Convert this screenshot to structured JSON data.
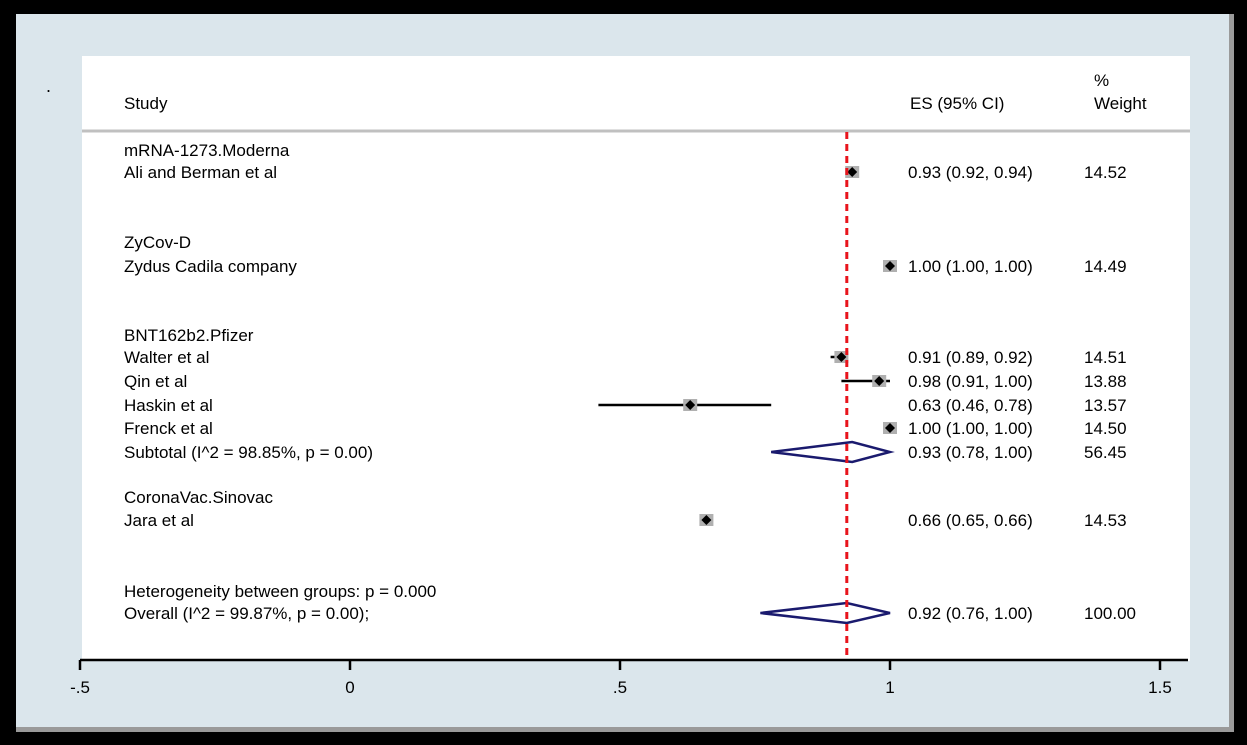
{
  "chart_data": {
    "type": "forest",
    "header": {
      "study": "Study",
      "es": "ES (95% CI)",
      "weight_line1": "%",
      "weight_line2": "Weight"
    },
    "rows": [
      {
        "kind": "group",
        "label": "mRNA-1273.Moderna"
      },
      {
        "kind": "study",
        "label": "Ali and Berman et al",
        "es": 0.93,
        "lo": 0.92,
        "hi": 0.94,
        "es_text": "0.93 (0.92, 0.94)",
        "weight": "14.52"
      },
      {
        "kind": "group",
        "label": "ZyCov-D"
      },
      {
        "kind": "study",
        "label": "Zydus Cadila company",
        "es": 1.0,
        "lo": 1.0,
        "hi": 1.0,
        "es_text": "1.00 (1.00, 1.00)",
        "weight": "14.49"
      },
      {
        "kind": "group",
        "label": "BNT162b2.Pfizer"
      },
      {
        "kind": "study",
        "label": "Walter et al",
        "es": 0.91,
        "lo": 0.89,
        "hi": 0.92,
        "es_text": "0.91 (0.89, 0.92)",
        "weight": "14.51"
      },
      {
        "kind": "study",
        "label": "Qin et al",
        "es": 0.98,
        "lo": 0.91,
        "hi": 1.0,
        "es_text": "0.98 (0.91, 1.00)",
        "weight": "13.88"
      },
      {
        "kind": "study",
        "label": "Haskin et al",
        "es": 0.63,
        "lo": 0.46,
        "hi": 0.78,
        "es_text": "0.63 (0.46, 0.78)",
        "weight": "13.57"
      },
      {
        "kind": "study",
        "label": "Frenck et al",
        "es": 1.0,
        "lo": 1.0,
        "hi": 1.0,
        "es_text": "1.00 (1.00, 1.00)",
        "weight": "14.50"
      },
      {
        "kind": "subtotal",
        "label": "Subtotal  (I^2 = 98.85%, p = 0.00)",
        "es": 0.93,
        "lo": 0.78,
        "hi": 1.0,
        "es_text": "0.93 (0.78, 1.00)",
        "weight": "56.45"
      },
      {
        "kind": "group",
        "label": "CoronaVac.Sinovac"
      },
      {
        "kind": "study",
        "label": "Jara et al",
        "es": 0.66,
        "lo": 0.65,
        "hi": 0.66,
        "es_text": "0.66 (0.65, 0.66)",
        "weight": "14.53"
      },
      {
        "kind": "note",
        "label": "Heterogeneity between groups: p = 0.000"
      },
      {
        "kind": "overall",
        "label": "Overall  (I^2 = 99.87%, p = 0.00);",
        "es": 0.92,
        "lo": 0.76,
        "hi": 1.0,
        "es_text": "0.92 (0.76, 1.00)",
        "weight": "100.00"
      }
    ],
    "reference_line": 0.92,
    "xlim": [
      -0.5,
      1.5
    ],
    "xticks": [
      -0.5,
      0,
      0.5,
      1,
      1.5
    ],
    "xtick_labels": [
      "-.5",
      "0",
      ".5",
      "1",
      "1.5"
    ],
    "colors": {
      "reference_line": "#e8141c",
      "diamond": "#1a1a6e",
      "marker_box": "#b0b0b0",
      "marker_point": "#000000",
      "panel": "#dbe6ec",
      "plot_area": "#ffffff"
    }
  }
}
